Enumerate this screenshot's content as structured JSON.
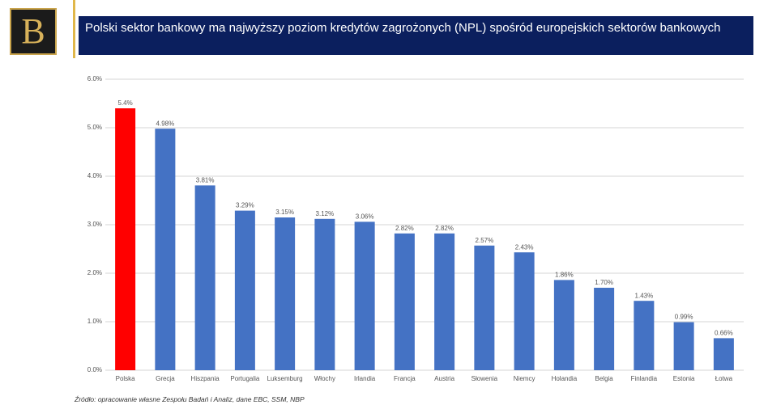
{
  "logo": "B",
  "chart_data": {
    "type": "bar",
    "title": "Polski sektor bankowy ma najwyższy poziom kredytów zagrożonych (NPL) spośród europejskich sektorów bankowych",
    "source": "Źródło: opracowanie własne Zespołu Badań i Analiz, dane EBC, SSM, NBP",
    "categories": [
      "Polska",
      "Grecja",
      "Hiszpania",
      "Portugalia",
      "Luksemburg",
      "Włochy",
      "Irlandia",
      "Francja",
      "Austria",
      "Słowenia",
      "Niemcy",
      "Holandia",
      "Belgia",
      "Finlandia",
      "Estonia",
      "Łotwa"
    ],
    "values": [
      5.4,
      4.98,
      3.81,
      3.29,
      3.15,
      3.12,
      3.06,
      2.82,
      2.82,
      2.57,
      2.43,
      1.86,
      1.7,
      1.43,
      0.99,
      0.66
    ],
    "value_labels": [
      "5.4%",
      "4.98%",
      "3.81%",
      "3.29%",
      "3.15%",
      "3.12%",
      "3.06%",
      "2.82%",
      "2.82%",
      "2.57%",
      "2.43%",
      "1.86%",
      "1.70%",
      "1.43%",
      "0.99%",
      "0.66%"
    ],
    "colors": [
      "#ff0000",
      "#4472c4",
      "#4472c4",
      "#4472c4",
      "#4472c4",
      "#4472c4",
      "#4472c4",
      "#4472c4",
      "#4472c4",
      "#4472c4",
      "#4472c4",
      "#4472c4",
      "#4472c4",
      "#4472c4",
      "#4472c4",
      "#4472c4"
    ],
    "ylim": [
      0,
      6
    ],
    "yticks": [
      {
        "value": 0,
        "label": "0.0%"
      },
      {
        "value": 1,
        "label": "1.0%"
      },
      {
        "value": 2,
        "label": "2.0%"
      },
      {
        "value": 3,
        "label": "3.0%"
      },
      {
        "value": 4,
        "label": "4.0%"
      },
      {
        "value": 5,
        "label": "5.0%"
      },
      {
        "value": 6,
        "label": "6.0%"
      }
    ],
    "grid": true
  }
}
